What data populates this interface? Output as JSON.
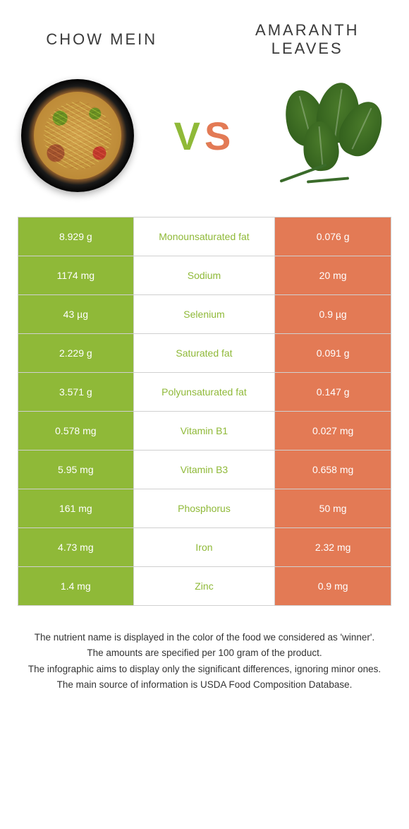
{
  "header": {
    "left_title": "CHOW MEIN",
    "right_title": "AMARANTH LEAVES",
    "vs_text": "VS"
  },
  "colors": {
    "left_bg": "#8fb938",
    "right_bg": "#e37a55",
    "mid_text": "#8fb938",
    "cell_text": "#ffffff",
    "border": "#d0d0d0"
  },
  "rows": [
    {
      "left": "8.929 g",
      "label": "Monounsaturated fat",
      "right": "0.076 g"
    },
    {
      "left": "1174 mg",
      "label": "Sodium",
      "right": "20 mg"
    },
    {
      "left": "43 µg",
      "label": "Selenium",
      "right": "0.9 µg"
    },
    {
      "left": "2.229 g",
      "label": "Saturated fat",
      "right": "0.091 g"
    },
    {
      "left": "3.571 g",
      "label": "Polyunsaturated fat",
      "right": "0.147 g"
    },
    {
      "left": "0.578 mg",
      "label": "Vitamin B1",
      "right": "0.027 mg"
    },
    {
      "left": "5.95 mg",
      "label": "Vitamin B3",
      "right": "0.658 mg"
    },
    {
      "left": "161 mg",
      "label": "Phosphorus",
      "right": "50 mg"
    },
    {
      "left": "4.73 mg",
      "label": "Iron",
      "right": "2.32 mg"
    },
    {
      "left": "1.4 mg",
      "label": "Zinc",
      "right": "0.9 mg"
    }
  ],
  "footnotes": [
    "The nutrient name is displayed in the color of the food we considered as 'winner'.",
    "The amounts are specified per 100 gram of the product.",
    "The infographic aims to display only the significant differences, ignoring minor ones.",
    "The main source of information is USDA Food Composition Database."
  ]
}
